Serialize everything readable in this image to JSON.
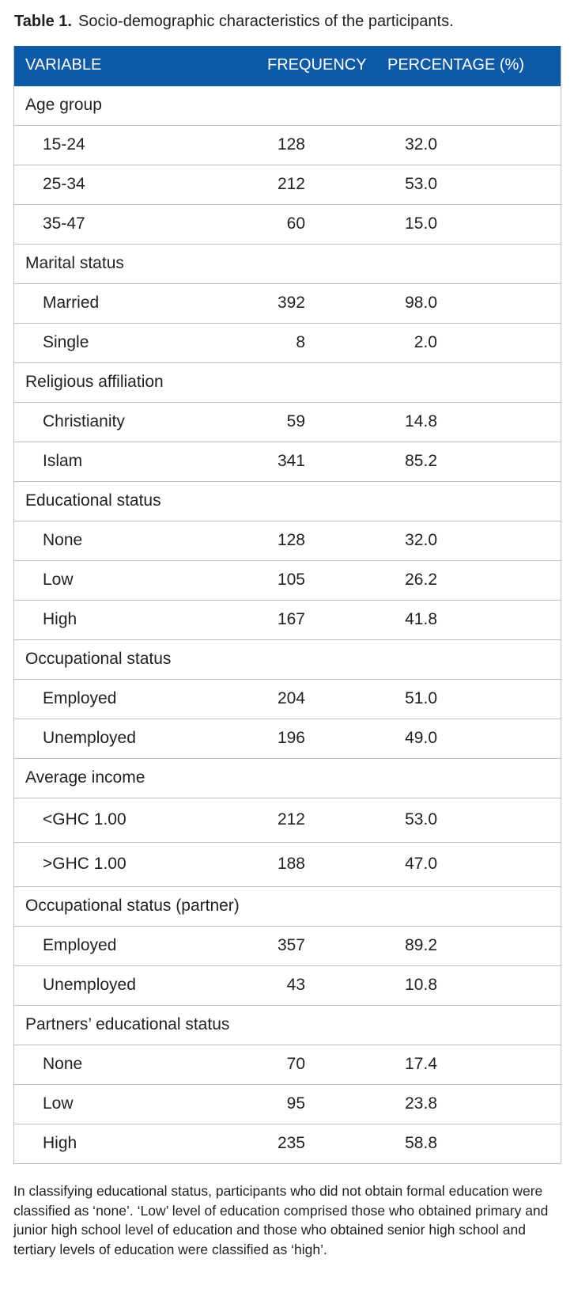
{
  "caption": {
    "label": "Table 1.",
    "text": "Socio-demographic characteristics of the participants."
  },
  "header": {
    "variable": "VARIABLE",
    "frequency": "FREQUENCY",
    "percentage": "PERCENTAGE (%)"
  },
  "rows": [
    {
      "type": "category",
      "label": "Age group"
    },
    {
      "type": "item",
      "label": "15-24",
      "frequency": "128",
      "percentage": "32.0"
    },
    {
      "type": "item",
      "label": "25-34",
      "frequency": "212",
      "percentage": "53.0"
    },
    {
      "type": "item",
      "label": "35-47",
      "frequency": "60",
      "percentage": "15.0"
    },
    {
      "type": "category",
      "label": "Marital status"
    },
    {
      "type": "item",
      "label": "Married",
      "frequency": "392",
      "percentage": "98.0"
    },
    {
      "type": "item",
      "label": "Single",
      "frequency": "8",
      "percentage": "2.0"
    },
    {
      "type": "category",
      "label": "Religious affiliation"
    },
    {
      "type": "item",
      "label": "Christianity",
      "frequency": "59",
      "percentage": "14.8"
    },
    {
      "type": "item",
      "label": "Islam",
      "frequency": "341",
      "percentage": "85.2"
    },
    {
      "type": "category",
      "label": "Educational status"
    },
    {
      "type": "item",
      "label": "None",
      "frequency": "128",
      "percentage": "32.0"
    },
    {
      "type": "item",
      "label": "Low",
      "frequency": "105",
      "percentage": "26.2"
    },
    {
      "type": "item",
      "label": "High",
      "frequency": "167",
      "percentage": "41.8"
    },
    {
      "type": "category",
      "label": "Occupational status"
    },
    {
      "type": "item",
      "label": "Employed",
      "frequency": "204",
      "percentage": "51.0"
    },
    {
      "type": "item",
      "label": "Unemployed",
      "frequency": "196",
      "percentage": "49.0"
    },
    {
      "type": "category",
      "label": "Average income"
    },
    {
      "type": "item",
      "label": "<GHC 1.00",
      "frequency": "212",
      "percentage": "53.0",
      "tall": true
    },
    {
      "type": "item",
      "label": ">GHC 1.00",
      "frequency": "188",
      "percentage": "47.0",
      "tall": true
    },
    {
      "type": "category",
      "label": "Occupational status (partner)"
    },
    {
      "type": "item",
      "label": "Employed",
      "frequency": "357",
      "percentage": "89.2"
    },
    {
      "type": "item",
      "label": "Unemployed",
      "frequency": "43",
      "percentage": "10.8"
    },
    {
      "type": "category",
      "label": "Partners’ educational status"
    },
    {
      "type": "item",
      "label": "None",
      "frequency": "70",
      "percentage": "17.4"
    },
    {
      "type": "item",
      "label": "Low",
      "frequency": "95",
      "percentage": "23.8"
    },
    {
      "type": "item",
      "label": "High",
      "frequency": "235",
      "percentage": "58.8"
    }
  ],
  "footnote": "In classifying educational status, participants who did not obtain formal education were classified as ‘none’. ‘Low’ level of education comprised those who obtained primary and junior high school level of education and those who obtained senior high school and tertiary levels of education were classified as ‘high’."
}
